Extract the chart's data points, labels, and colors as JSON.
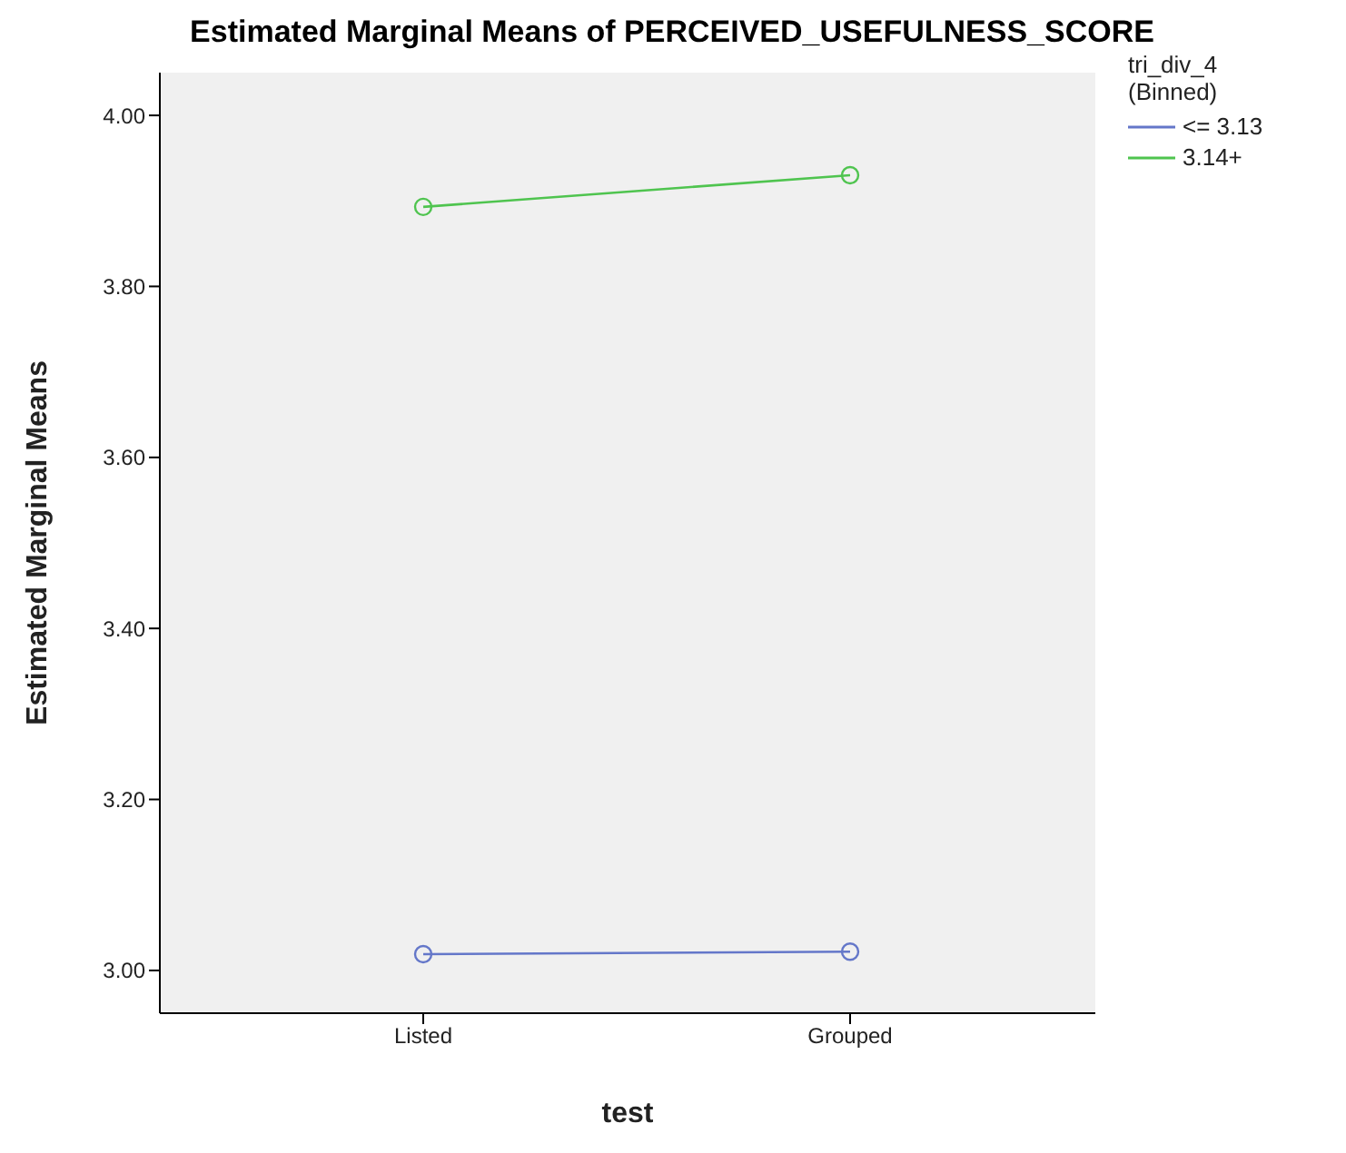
{
  "chart_data": {
    "type": "line",
    "title": "Estimated Marginal Means of PERCEIVED_USEFULNESS_SCORE",
    "xlabel": "test",
    "ylabel": "Estimated Marginal Means",
    "legend_title": "tri_div_4 (Binned)",
    "categories": [
      "Listed",
      "Grouped"
    ],
    "series": [
      {
        "name": "<= 3.13",
        "color": "#6477c9",
        "values": [
          3.019,
          3.022
        ]
      },
      {
        "name": "3.14+",
        "color": "#4fc44f",
        "values": [
          3.893,
          3.93
        ]
      }
    ],
    "ylim": [
      2.95,
      4.05
    ],
    "yticks": [
      {
        "value": 3,
        "label": "3.00"
      },
      {
        "value": 3.2,
        "label": "3.20"
      },
      {
        "value": 3.4,
        "label": "3.40"
      },
      {
        "value": 3.6,
        "label": "3.60"
      },
      {
        "value": 3.8,
        "label": "3.80"
      },
      {
        "value": 4,
        "label": "4.00"
      }
    ],
    "grid": false,
    "legend": "top right",
    "marker": "circle",
    "line_style": "solid"
  }
}
